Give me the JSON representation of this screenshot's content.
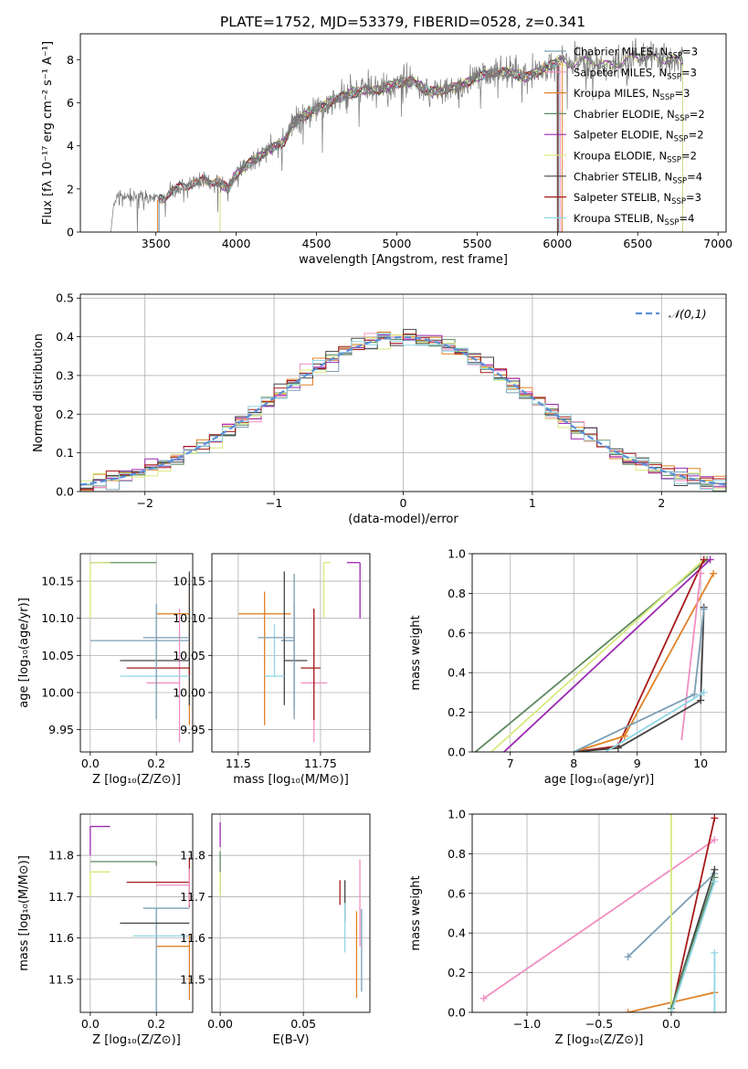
{
  "figure": {
    "title": "PLATE=1752, MJD=53379, FIBERID=0528, z=0.341"
  },
  "series": [
    {
      "name": "Chabrier MILES",
      "nssp": "3",
      "color": "#7b9fb5"
    },
    {
      "name": "Salpeter MILES",
      "nssp": "3",
      "color": "#f18fc2"
    },
    {
      "name": "Kroupa MILES",
      "nssp": "3",
      "color": "#e08227"
    },
    {
      "name": "Chabrier ELODIE",
      "nssp": "2",
      "color": "#5e8a5e"
    },
    {
      "name": "Salpeter ELODIE",
      "nssp": "2",
      "color": "#9b27b0"
    },
    {
      "name": "Kroupa ELODIE",
      "nssp": "2",
      "color": "#d7ea7c"
    },
    {
      "name": "Chabrier STELIB",
      "nssp": "4",
      "color": "#444444"
    },
    {
      "name": "Salpeter STELIB",
      "nssp": "3",
      "color": "#a61a1a"
    },
    {
      "name": "Kroupa STELIB",
      "nssp": "4",
      "color": "#8fd6e6"
    }
  ],
  "chart_data": [
    {
      "id": "spectrum",
      "type": "line",
      "title": "PLATE=1752, MJD=53379, FIBERID=0528, z=0.341",
      "xlabel": "wavelength [Angstrom, rest frame]",
      "ylabel": "Flux [fλ 10⁻¹⁷ erg cm⁻² s⁻¹ A⁻¹]",
      "xlim": [
        3030,
        7050
      ],
      "ylim": [
        0,
        9.2
      ],
      "xticks": [
        3500,
        4000,
        4500,
        5000,
        5500,
        6000,
        6500,
        7000
      ],
      "yticks": [
        0,
        2,
        4,
        6,
        8
      ],
      "grid": false,
      "legend": "upper right",
      "data_x": [
        3220,
        3240,
        3300,
        3400,
        3500,
        3550,
        3600,
        3650,
        3700,
        3800,
        3900,
        3950,
        4000,
        4050,
        4100,
        4200,
        4300,
        4350,
        4400,
        4500,
        4600,
        4700,
        4800,
        4900,
        5000,
        5100,
        5200,
        5300,
        5400,
        5500,
        5600,
        5700,
        5800,
        5900,
        6000,
        6100,
        6200,
        6300,
        6400,
        6500,
        6600,
        6700,
        6780
      ],
      "data_y": [
        0,
        1.5,
        1.65,
        1.6,
        1.55,
        1.6,
        1.9,
        2.1,
        2.2,
        2.4,
        2.3,
        2.0,
        2.7,
        3.0,
        3.3,
        3.8,
        4.2,
        5.0,
        5.3,
        5.7,
        6.1,
        6.4,
        6.6,
        6.6,
        6.9,
        7.0,
        6.5,
        6.6,
        6.8,
        7.2,
        7.4,
        7.4,
        7.2,
        7.5,
        7.9,
        7.8,
        8.0,
        7.7,
        7.9,
        8.2,
        8.1,
        8.0,
        7.9
      ],
      "model_start": [
        3520,
        3520,
        3510,
        3900,
        3900,
        3900,
        3520,
        3520,
        3520
      ],
      "model_end": [
        6010,
        6020,
        6030,
        6780,
        6780,
        6780,
        6000,
        6005,
        6010
      ]
    },
    {
      "id": "residuals",
      "type": "line",
      "xlabel": "(data-model)/error",
      "ylabel": "Normed distribution",
      "xlim": [
        -2.5,
        2.5
      ],
      "ylim": [
        0,
        0.51
      ],
      "xticks": [
        -2,
        -1,
        0,
        1,
        2
      ],
      "yticks": [
        0,
        0.1,
        0.2,
        0.3,
        0.4,
        0.5
      ],
      "grid": true,
      "legend": "upper right",
      "reference_label": "𝒩(0,1)",
      "bin_width": 0.1
    },
    {
      "id": "age-vs-Z",
      "type": "scatter",
      "xlabel": "Z [log₁₀(Z/Z⊙)]",
      "ylabel": "age  [log₁₀(age/yr)]",
      "xlim": [
        -0.03,
        0.31
      ],
      "ylim": [
        9.92,
        10.187
      ],
      "xticks": [
        0.0,
        0.2
      ],
      "yticks": [
        9.95,
        10.0,
        10.05,
        10.1,
        10.15
      ],
      "grid": true,
      "points": [
        {
          "x": 0.3,
          "y": 10.07,
          "xerr": [
            0.3,
            0.0
          ],
          "yerr": [
            0.09,
            0.09
          ]
        },
        {
          "x": 0.27,
          "y": 10.013,
          "xerr": [
            0.1,
            0.0
          ],
          "yerr": [
            0.08,
            0.1
          ]
        },
        {
          "x": 0.3,
          "y": 10.106,
          "xerr": [
            0.1,
            0.0
          ],
          "yerr": [
            0.15,
            0.03
          ]
        },
        {
          "x": 0.2,
          "y": 10.175,
          "xerr": [
            0.2,
            0.0
          ],
          "yerr": [
            0.0,
            0.0
          ]
        },
        {
          "x": 0.3,
          "y": 10.175,
          "xerr": [
            0.0,
            0.0
          ],
          "yerr": [
            0.0,
            0.0
          ]
        },
        {
          "x": 0.0,
          "y": 10.175,
          "xerr": [
            0.0,
            0.06
          ],
          "yerr": [
            0.075,
            0.0
          ]
        },
        {
          "x": 0.3,
          "y": 10.043,
          "xerr": [
            0.21,
            0.0
          ],
          "yerr": [
            0.06,
            0.12
          ]
        },
        {
          "x": 0.3,
          "y": 10.033,
          "xerr": [
            0.19,
            0.0
          ],
          "yerr": [
            0.01,
            0.0
          ]
        },
        {
          "x": 0.2,
          "y": 10.022,
          "xerr": [
            0.11,
            0.1
          ],
          "yerr": [
            0.0,
            0.0
          ]
        },
        {
          "x": 0.2,
          "y": 10.074,
          "xerr": [
            0.04,
            0.1
          ],
          "yerr": [
            0.11,
            0.045
          ]
        }
      ]
    },
    {
      "id": "age-vs-mass",
      "type": "scatter",
      "xlabel": "mass [log₁₀(M/M⊙)]",
      "ylabel": "",
      "xlim": [
        11.42,
        11.9
      ],
      "ylim": [
        9.92,
        10.187
      ],
      "xticks": [
        11.5,
        11.75
      ],
      "yticks": [
        9.95,
        10.0,
        10.05,
        10.1,
        10.15
      ],
      "grid": true,
      "points": [
        {
          "x": 11.67,
          "y": 10.07,
          "xerr": [
            0.04,
            0.0
          ],
          "yerr": [
            0.09,
            0.09
          ]
        },
        {
          "x": 11.73,
          "y": 10.013,
          "xerr": [
            0.04,
            0.04
          ],
          "yerr": [
            0.08,
            0.1
          ]
        },
        {
          "x": 11.58,
          "y": 10.106,
          "xerr": [
            0.08,
            0.08
          ],
          "yerr": [
            0.15,
            0.03
          ]
        },
        {
          "x": 11.79,
          "y": 10.175,
          "xerr": [
            0.0,
            0.0
          ],
          "yerr": [
            0.0,
            0.0
          ]
        },
        {
          "x": 11.87,
          "y": 10.175,
          "xerr": [
            0.04,
            0.0
          ],
          "yerr": [
            0.075,
            0.0
          ]
        },
        {
          "x": 11.76,
          "y": 10.175,
          "xerr": [
            0.0,
            0.02
          ],
          "yerr": [
            0.075,
            0.0
          ]
        },
        {
          "x": 11.64,
          "y": 10.043,
          "xerr": [
            0.0,
            0.07
          ],
          "yerr": [
            0.06,
            0.12
          ]
        },
        {
          "x": 11.73,
          "y": 10.033,
          "xerr": [
            0.04,
            0.02
          ],
          "yerr": [
            0.07,
            0.08
          ]
        },
        {
          "x": 11.61,
          "y": 10.022,
          "xerr": [
            0.03,
            0.03
          ],
          "yerr": [
            0.0,
            0.07
          ]
        },
        {
          "x": 11.67,
          "y": 10.074,
          "xerr": [
            0.11,
            0.0
          ],
          "yerr": [
            0.11,
            0.045
          ]
        }
      ]
    },
    {
      "id": "weight-vs-age",
      "type": "line",
      "xlabel": "age  [log₁₀(age/yr)]",
      "ylabel": "mass weight",
      "xlim": [
        6.4,
        10.4
      ],
      "ylim": [
        0,
        1.0
      ],
      "xticks": [
        7,
        8,
        9,
        10
      ],
      "yticks": [
        0.0,
        0.2,
        0.4,
        0.6,
        0.8,
        1.0
      ],
      "grid": true
    },
    {
      "id": "mass-vs-Z",
      "type": "scatter",
      "xlabel": "Z [log₁₀(Z/Z⊙)]",
      "ylabel": "mass [log₁₀(M/M⊙)]",
      "xlim": [
        -0.03,
        0.31
      ],
      "ylim": [
        11.42,
        11.9
      ],
      "xticks": [
        0.0,
        0.2
      ],
      "yticks": [
        11.5,
        11.6,
        11.7,
        11.8
      ],
      "grid": true
    },
    {
      "id": "mass-vs-ebv",
      "type": "scatter",
      "xlabel": "E(B-V)",
      "ylabel": "",
      "xlim": [
        -0.005,
        0.09
      ],
      "ylim": [
        11.42,
        11.9
      ],
      "xticks": [
        0.0,
        0.05
      ],
      "yticks": [
        11.5,
        11.6,
        11.7,
        11.8
      ],
      "grid": true
    },
    {
      "id": "weight-vs-Z",
      "type": "line",
      "xlabel": "Z [log₁₀(Z/Z⊙)]",
      "ylabel": "mass weight",
      "xlim": [
        -1.38,
        0.38
      ],
      "ylim": [
        0,
        1.0
      ],
      "xticks": [
        -1.0,
        -0.5,
        0.0
      ],
      "yticks": [
        0.0,
        0.2,
        0.4,
        0.6,
        0.8,
        1.0
      ],
      "grid": true
    }
  ]
}
